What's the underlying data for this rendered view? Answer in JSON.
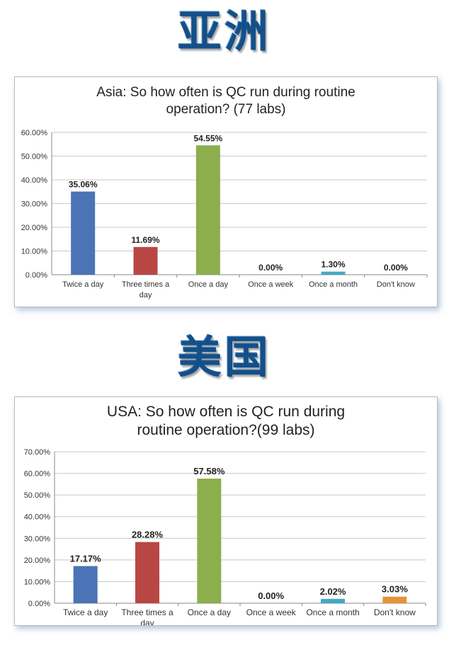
{
  "headings": {
    "asia": "亚洲",
    "usa": "美国"
  },
  "colors": {
    "heading": "#13508a"
  },
  "chart_data": [
    {
      "type": "bar",
      "title": "Asia: So how often is QC run during routine operation? (77 labs)",
      "title_lines": [
        "Asia: So how often is QC run during routine",
        "operation? (77 labs)"
      ],
      "categories": [
        "Twice a day",
        "Three times a day",
        "Once a day",
        "Once a week",
        "Once a month",
        "Don't know"
      ],
      "category_lines": [
        [
          "Twice a day"
        ],
        [
          "Three times a",
          "day"
        ],
        [
          "Once a day"
        ],
        [
          "Once a week"
        ],
        [
          "Once a month"
        ],
        [
          "Don't know"
        ]
      ],
      "values": [
        35.06,
        11.69,
        54.55,
        0.0,
        1.3,
        0.0
      ],
      "labels": [
        "35.06%",
        "11.69%",
        "54.55%",
        "0.00%",
        "1.30%",
        "0.00%"
      ],
      "colors": [
        "#4a74b5",
        "#b84744",
        "#8cae4c",
        "#7c5ea6",
        "#45a8c5",
        "#e5923a"
      ],
      "yticks": [
        "0.00%",
        "10.00%",
        "20.00%",
        "30.00%",
        "40.00%",
        "50.00%",
        "60.00%"
      ],
      "ylim": [
        0,
        60
      ],
      "grid": true,
      "legend": "none"
    },
    {
      "type": "bar",
      "title": "USA: So how often is QC run during routine operation?(99 labs)",
      "title_lines": [
        "USA: So how often is QC run during",
        "routine operation?(99 labs)"
      ],
      "categories": [
        "Twice a day",
        "Three times a day",
        "Once a day",
        "Once a week",
        "Once a month",
        "Don't know"
      ],
      "category_lines": [
        [
          "Twice a day"
        ],
        [
          "Three times a",
          "day"
        ],
        [
          "Once a day"
        ],
        [
          "Once a week"
        ],
        [
          "Once a month"
        ],
        [
          "Don't know"
        ]
      ],
      "values": [
        17.17,
        28.28,
        57.58,
        0.0,
        2.02,
        3.03
      ],
      "labels": [
        "17.17%",
        "28.28%",
        "57.58%",
        "0.00%",
        "2.02%",
        "3.03%"
      ],
      "colors": [
        "#4a74b5",
        "#b84744",
        "#8cae4c",
        "#7c5ea6",
        "#45a8c5",
        "#e5923a"
      ],
      "yticks": [
        "0.00%",
        "10.00%",
        "20.00%",
        "30.00%",
        "40.00%",
        "50.00%",
        "60.00%",
        "70.00%"
      ],
      "ylim": [
        0,
        70
      ],
      "grid": true,
      "legend": "none"
    }
  ]
}
